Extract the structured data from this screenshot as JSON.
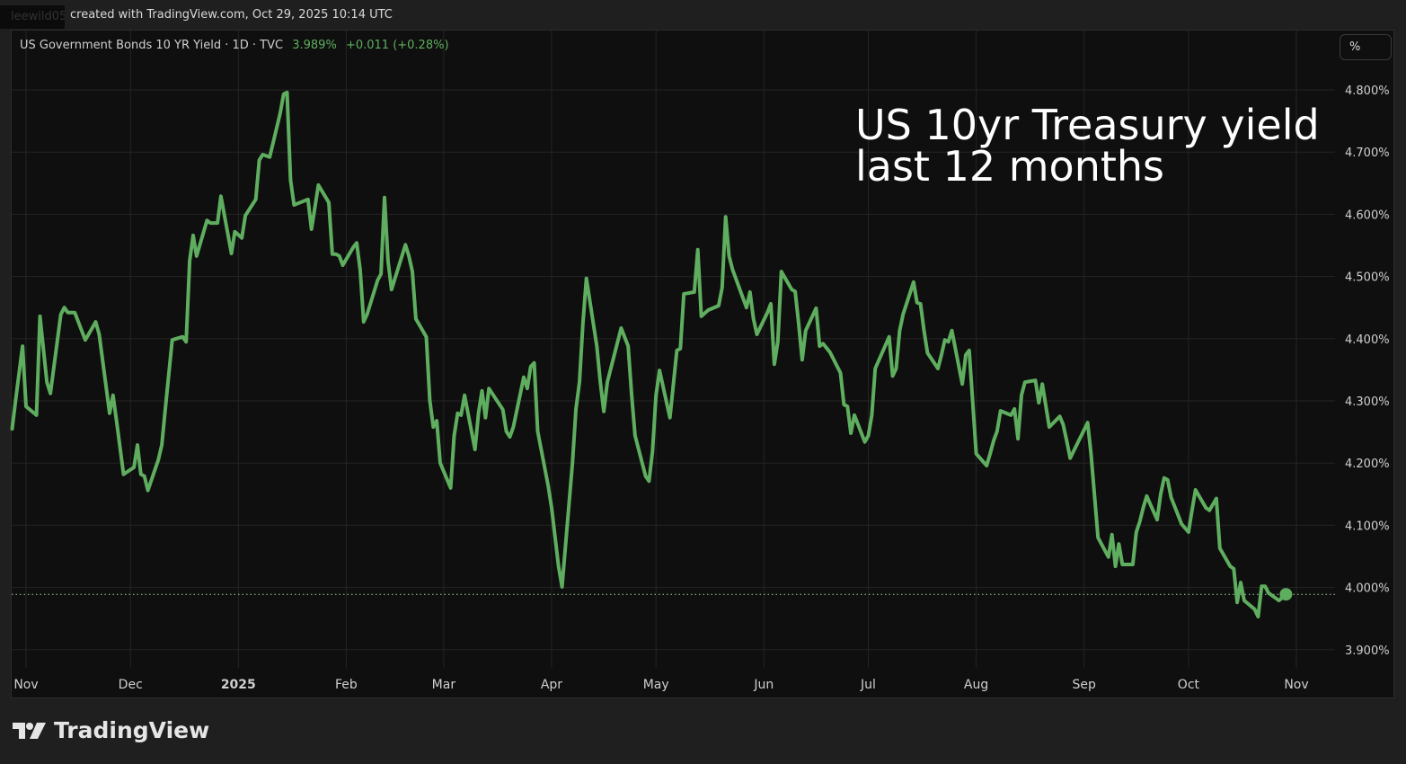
{
  "header": {
    "username": "leewild05",
    "created_text": "created with TradingView.com, Oct 29, 2025 10:14 UTC"
  },
  "legend": {
    "symbol": "US Government Bonds 10 YR Yield · 1D · TVC",
    "last": "3.989%",
    "change": "+0.011 (+0.28%)"
  },
  "unit_button": "%",
  "annotation": [
    "US 10yr Treasury yield",
    "last 12 months"
  ],
  "footer": {
    "logo_text": "TradingView"
  },
  "colors": {
    "line": "#5fae5f",
    "background": "#0f0f0f",
    "grid": "#242424"
  },
  "chart_data": {
    "type": "line",
    "title": "",
    "xlabel": "",
    "ylabel": "",
    "ylim": [
      3.86,
      4.84
    ],
    "xlim": [
      "2024-10-28",
      "2025-11-06"
    ],
    "grid": true,
    "y_scale_position": "right",
    "y_ticks": [
      3.9,
      4.0,
      4.1,
      4.2,
      4.3,
      4.4,
      4.5,
      4.6,
      4.7,
      4.8
    ],
    "y_tick_labels": [
      "3.900%",
      "4.000%",
      "4.100%",
      "4.200%",
      "4.300%",
      "4.400%",
      "4.500%",
      "4.600%",
      "4.700%",
      "4.800%"
    ],
    "x_ticks": [
      "2024-11-01",
      "2024-12-01",
      "2025-01-01",
      "2025-02-01",
      "2025-03-01",
      "2025-04-01",
      "2025-05-01",
      "2025-06-01",
      "2025-07-01",
      "2025-08-01",
      "2025-09-01",
      "2025-10-01",
      "2025-11-01"
    ],
    "x_tick_labels": [
      "Nov",
      "Dec",
      "2025",
      "Feb",
      "Mar",
      "Apr",
      "May",
      "Jun",
      "Jul",
      "Aug",
      "Sep",
      "Oct",
      "Nov"
    ],
    "last_value": 3.989,
    "series": [
      {
        "points": [
          [
            "2024-10-28",
            4.255
          ],
          [
            "2024-10-29",
            4.301
          ],
          [
            "2024-10-31",
            4.388
          ],
          [
            "2024-11-01",
            4.291
          ],
          [
            "2024-11-04",
            4.277
          ],
          [
            "2024-11-05",
            4.436
          ],
          [
            "2024-11-07",
            4.33
          ],
          [
            "2024-11-08",
            4.312
          ],
          [
            "2024-11-11",
            4.439
          ],
          [
            "2024-11-12",
            4.45
          ],
          [
            "2024-11-13",
            4.442
          ],
          [
            "2024-11-15",
            4.442
          ],
          [
            "2024-11-18",
            4.398
          ],
          [
            "2024-11-20",
            4.417
          ],
          [
            "2024-11-21",
            4.427
          ],
          [
            "2024-11-22",
            4.407
          ],
          [
            "2024-11-25",
            4.28
          ],
          [
            "2024-11-26",
            4.309
          ],
          [
            "2024-11-27",
            4.268
          ],
          [
            "2024-11-29",
            4.182
          ],
          [
            "2024-12-02",
            4.193
          ],
          [
            "2024-12-03",
            4.229
          ],
          [
            "2024-12-04",
            4.182
          ],
          [
            "2024-12-05",
            4.179
          ],
          [
            "2024-12-06",
            4.156
          ],
          [
            "2024-12-09",
            4.205
          ],
          [
            "2024-12-10",
            4.229
          ],
          [
            "2024-12-11",
            4.287
          ],
          [
            "2024-12-13",
            4.398
          ],
          [
            "2024-12-16",
            4.403
          ],
          [
            "2024-12-17",
            4.395
          ],
          [
            "2024-12-18",
            4.525
          ],
          [
            "2024-12-19",
            4.566
          ],
          [
            "2024-12-20",
            4.533
          ],
          [
            "2024-12-23",
            4.59
          ],
          [
            "2024-12-24",
            4.586
          ],
          [
            "2024-12-26",
            4.586
          ],
          [
            "2024-12-27",
            4.629
          ],
          [
            "2024-12-30",
            4.537
          ],
          [
            "2024-12-31",
            4.572
          ],
          [
            "2025-01-02",
            4.562
          ],
          [
            "2025-01-03",
            4.598
          ],
          [
            "2025-01-06",
            4.624
          ],
          [
            "2025-01-07",
            4.687
          ],
          [
            "2025-01-08",
            4.696
          ],
          [
            "2025-01-10",
            4.692
          ],
          [
            "2025-01-13",
            4.762
          ],
          [
            "2025-01-14",
            4.793
          ],
          [
            "2025-01-15",
            4.796
          ],
          [
            "2025-01-16",
            4.655
          ],
          [
            "2025-01-17",
            4.615
          ],
          [
            "2025-01-21",
            4.624
          ],
          [
            "2025-01-22",
            4.576
          ],
          [
            "2025-01-24",
            4.647
          ],
          [
            "2025-01-27",
            4.619
          ],
          [
            "2025-01-28",
            4.536
          ],
          [
            "2025-01-29",
            4.536
          ],
          [
            "2025-01-30",
            4.533
          ],
          [
            "2025-01-31",
            4.518
          ],
          [
            "2025-02-03",
            4.547
          ],
          [
            "2025-02-04",
            4.554
          ],
          [
            "2025-02-05",
            4.511
          ],
          [
            "2025-02-06",
            4.427
          ],
          [
            "2025-02-07",
            4.439
          ],
          [
            "2025-02-10",
            4.494
          ],
          [
            "2025-02-11",
            4.504
          ],
          [
            "2025-02-12",
            4.627
          ],
          [
            "2025-02-13",
            4.525
          ],
          [
            "2025-02-14",
            4.479
          ],
          [
            "2025-02-18",
            4.551
          ],
          [
            "2025-02-19",
            4.533
          ],
          [
            "2025-02-20",
            4.508
          ],
          [
            "2025-02-21",
            4.432
          ],
          [
            "2025-02-24",
            4.403
          ],
          [
            "2025-02-25",
            4.301
          ],
          [
            "2025-02-26",
            4.258
          ],
          [
            "2025-02-27",
            4.268
          ],
          [
            "2025-02-28",
            4.2
          ],
          [
            "2025-03-03",
            4.16
          ],
          [
            "2025-03-04",
            4.244
          ],
          [
            "2025-03-05",
            4.28
          ],
          [
            "2025-03-06",
            4.277
          ],
          [
            "2025-03-07",
            4.309
          ],
          [
            "2025-03-10",
            4.222
          ],
          [
            "2025-03-11",
            4.28
          ],
          [
            "2025-03-12",
            4.316
          ],
          [
            "2025-03-13",
            4.273
          ],
          [
            "2025-03-14",
            4.32
          ],
          [
            "2025-03-18",
            4.286
          ],
          [
            "2025-03-19",
            4.251
          ],
          [
            "2025-03-20",
            4.242
          ],
          [
            "2025-03-21",
            4.258
          ],
          [
            "2025-03-24",
            4.338
          ],
          [
            "2025-03-25",
            4.32
          ],
          [
            "2025-03-26",
            4.355
          ],
          [
            "2025-03-27",
            4.361
          ],
          [
            "2025-03-28",
            4.251
          ],
          [
            "2025-03-31",
            4.164
          ],
          [
            "2025-04-01",
            4.128
          ],
          [
            "2025-04-03",
            4.034
          ],
          [
            "2025-04-04",
            4.001
          ],
          [
            "2025-04-07",
            4.2
          ],
          [
            "2025-04-08",
            4.287
          ],
          [
            "2025-04-09",
            4.33
          ],
          [
            "2025-04-10",
            4.424
          ],
          [
            "2025-04-11",
            4.497
          ],
          [
            "2025-04-14",
            4.388
          ],
          [
            "2025-04-15",
            4.33
          ],
          [
            "2025-04-16",
            4.283
          ],
          [
            "2025-04-17",
            4.33
          ],
          [
            "2025-04-21",
            4.417
          ],
          [
            "2025-04-23",
            4.388
          ],
          [
            "2025-04-24",
            4.309
          ],
          [
            "2025-04-25",
            4.244
          ],
          [
            "2025-04-28",
            4.179
          ],
          [
            "2025-04-29",
            4.171
          ],
          [
            "2025-04-30",
            4.219
          ],
          [
            "2025-05-01",
            4.309
          ],
          [
            "2025-05-02",
            4.349
          ],
          [
            "2025-05-05",
            4.273
          ],
          [
            "2025-05-07",
            4.381
          ],
          [
            "2025-05-08",
            4.384
          ],
          [
            "2025-05-09",
            4.472
          ],
          [
            "2025-05-12",
            4.475
          ],
          [
            "2025-05-13",
            4.543
          ],
          [
            "2025-05-14",
            4.436
          ],
          [
            "2025-05-16",
            4.446
          ],
          [
            "2025-05-19",
            4.453
          ],
          [
            "2025-05-20",
            4.482
          ],
          [
            "2025-05-21",
            4.596
          ],
          [
            "2025-05-22",
            4.533
          ],
          [
            "2025-05-23",
            4.511
          ],
          [
            "2025-05-27",
            4.45
          ],
          [
            "2025-05-28",
            4.475
          ],
          [
            "2025-05-29",
            4.432
          ],
          [
            "2025-05-30",
            4.407
          ],
          [
            "2025-06-02",
            4.442
          ],
          [
            "2025-06-03",
            4.456
          ],
          [
            "2025-06-04",
            4.359
          ],
          [
            "2025-06-05",
            4.395
          ],
          [
            "2025-06-06",
            4.508
          ],
          [
            "2025-06-09",
            4.479
          ],
          [
            "2025-06-10",
            4.476
          ],
          [
            "2025-06-11",
            4.424
          ],
          [
            "2025-06-12",
            4.366
          ],
          [
            "2025-06-13",
            4.413
          ],
          [
            "2025-06-16",
            4.449
          ],
          [
            "2025-06-17",
            4.388
          ],
          [
            "2025-06-18",
            4.392
          ],
          [
            "2025-06-20",
            4.378
          ],
          [
            "2025-06-23",
            4.345
          ],
          [
            "2025-06-24",
            4.294
          ],
          [
            "2025-06-25",
            4.291
          ],
          [
            "2025-06-26",
            4.248
          ],
          [
            "2025-06-27",
            4.277
          ],
          [
            "2025-06-30",
            4.234
          ],
          [
            "2025-07-01",
            4.244
          ],
          [
            "2025-07-02",
            4.277
          ],
          [
            "2025-07-03",
            4.352
          ],
          [
            "2025-07-07",
            4.403
          ],
          [
            "2025-07-08",
            4.34
          ],
          [
            "2025-07-09",
            4.352
          ],
          [
            "2025-07-10",
            4.413
          ],
          [
            "2025-07-11",
            4.439
          ],
          [
            "2025-07-14",
            4.491
          ],
          [
            "2025-07-15",
            4.458
          ],
          [
            "2025-07-16",
            4.456
          ],
          [
            "2025-07-17",
            4.413
          ],
          [
            "2025-07-18",
            4.377
          ],
          [
            "2025-07-21",
            4.352
          ],
          [
            "2025-07-22",
            4.374
          ],
          [
            "2025-07-23",
            4.398
          ],
          [
            "2025-07-24",
            4.395
          ],
          [
            "2025-07-25",
            4.413
          ],
          [
            "2025-07-28",
            4.327
          ],
          [
            "2025-07-29",
            4.374
          ],
          [
            "2025-07-30",
            4.381
          ],
          [
            "2025-08-01",
            4.215
          ],
          [
            "2025-08-04",
            4.196
          ],
          [
            "2025-08-05",
            4.215
          ],
          [
            "2025-08-06",
            4.236
          ],
          [
            "2025-08-07",
            4.251
          ],
          [
            "2025-08-08",
            4.284
          ],
          [
            "2025-08-11",
            4.277
          ],
          [
            "2025-08-12",
            4.287
          ],
          [
            "2025-08-13",
            4.239
          ],
          [
            "2025-08-14",
            4.309
          ],
          [
            "2025-08-15",
            4.33
          ],
          [
            "2025-08-18",
            4.333
          ],
          [
            "2025-08-19",
            4.297
          ],
          [
            "2025-08-20",
            4.327
          ],
          [
            "2025-08-22",
            4.258
          ],
          [
            "2025-08-25",
            4.275
          ],
          [
            "2025-08-26",
            4.262
          ],
          [
            "2025-08-27",
            4.236
          ],
          [
            "2025-08-28",
            4.208
          ],
          [
            "2025-09-02",
            4.265
          ],
          [
            "2025-09-03",
            4.215
          ],
          [
            "2025-09-05",
            4.08
          ],
          [
            "2025-09-08",
            4.049
          ],
          [
            "2025-09-09",
            4.085
          ],
          [
            "2025-09-10",
            4.034
          ],
          [
            "2025-09-11",
            4.07
          ],
          [
            "2025-09-12",
            4.037
          ],
          [
            "2025-09-15",
            4.037
          ],
          [
            "2025-09-16",
            4.089
          ],
          [
            "2025-09-17",
            4.106
          ],
          [
            "2025-09-18",
            4.128
          ],
          [
            "2025-09-19",
            4.147
          ],
          [
            "2025-09-22",
            4.109
          ],
          [
            "2025-09-23",
            4.15
          ],
          [
            "2025-09-24",
            4.176
          ],
          [
            "2025-09-25",
            4.173
          ],
          [
            "2025-09-26",
            4.145
          ],
          [
            "2025-09-29",
            4.102
          ],
          [
            "2025-10-01",
            4.089
          ],
          [
            "2025-10-02",
            4.124
          ],
          [
            "2025-10-03",
            4.157
          ],
          [
            "2025-10-06",
            4.128
          ],
          [
            "2025-10-07",
            4.124
          ],
          [
            "2025-10-09",
            4.143
          ],
          [
            "2025-10-10",
            4.063
          ],
          [
            "2025-10-13",
            4.034
          ],
          [
            "2025-10-14",
            4.03
          ],
          [
            "2025-10-15",
            3.976
          ],
          [
            "2025-10-16",
            4.008
          ],
          [
            "2025-10-17",
            3.979
          ],
          [
            "2025-10-20",
            3.965
          ],
          [
            "2025-10-21",
            3.953
          ],
          [
            "2025-10-22",
            4.002
          ],
          [
            "2025-10-23",
            4.002
          ],
          [
            "2025-10-24",
            3.991
          ],
          [
            "2025-10-27",
            3.979
          ],
          [
            "2025-10-29",
            3.989
          ]
        ]
      }
    ]
  }
}
